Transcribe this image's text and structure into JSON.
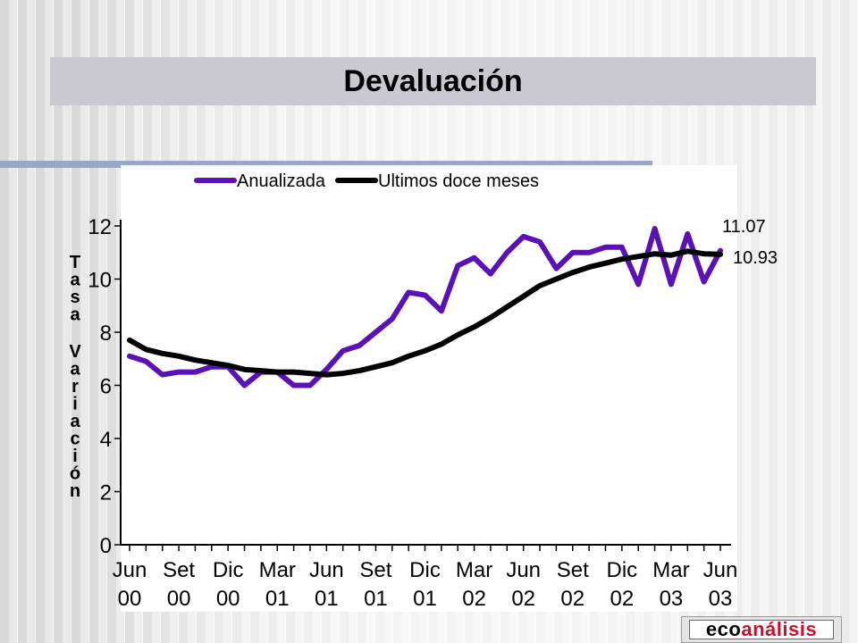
{
  "colors": {
    "anualizada": "#5b12b5",
    "ultimos": "#000000",
    "title_bar": "#c9c9cf",
    "rule": "#97a7c7",
    "logo_accent": "#c8102e"
  },
  "logo": {
    "part1": "eco",
    "part2": "análisis"
  },
  "chart_data": {
    "type": "line",
    "title": "Devaluación",
    "ylabel": "Tasa Variación",
    "xlabel": "",
    "ylim": [
      0,
      12
    ],
    "yticks": [
      "0",
      "2",
      "4",
      "6",
      "8",
      "10",
      "12"
    ],
    "x_tick_labels": [
      [
        "Jun",
        "00"
      ],
      [
        "Set",
        "00"
      ],
      [
        "Dic",
        "00"
      ],
      [
        "Mar",
        "01"
      ],
      [
        "Jun",
        "01"
      ],
      [
        "Set",
        "01"
      ],
      [
        "Dic",
        "01"
      ],
      [
        "Mar",
        "02"
      ],
      [
        "Jun",
        "02"
      ],
      [
        "Set",
        "02"
      ],
      [
        "Dic",
        "02"
      ],
      [
        "Mar",
        "03"
      ],
      [
        "Jun",
        "03"
      ]
    ],
    "legend_position": "top",
    "grid": false,
    "end_labels": [
      "11.07",
      "10.93"
    ],
    "series": [
      {
        "name": "Anualizada",
        "values": [
          7.1,
          6.9,
          6.4,
          6.5,
          6.5,
          6.7,
          6.7,
          6.0,
          6.5,
          6.5,
          6.0,
          6.0,
          6.6,
          7.3,
          7.5,
          8.0,
          8.5,
          9.5,
          9.4,
          8.8,
          10.5,
          10.8,
          10.2,
          11.0,
          11.6,
          11.4,
          10.4,
          11.0,
          11.0,
          11.2,
          11.2,
          9.8,
          11.9,
          9.8,
          11.7,
          9.9,
          11.07
        ]
      },
      {
        "name": "Ultimos doce meses",
        "values": [
          7.7,
          7.35,
          7.2,
          7.1,
          6.95,
          6.85,
          6.75,
          6.6,
          6.55,
          6.5,
          6.5,
          6.45,
          6.4,
          6.45,
          6.55,
          6.7,
          6.85,
          7.1,
          7.3,
          7.55,
          7.9,
          8.2,
          8.55,
          8.95,
          9.35,
          9.75,
          10.0,
          10.25,
          10.45,
          10.6,
          10.75,
          10.85,
          10.95,
          10.9,
          11.05,
          10.95,
          10.93
        ]
      }
    ]
  }
}
